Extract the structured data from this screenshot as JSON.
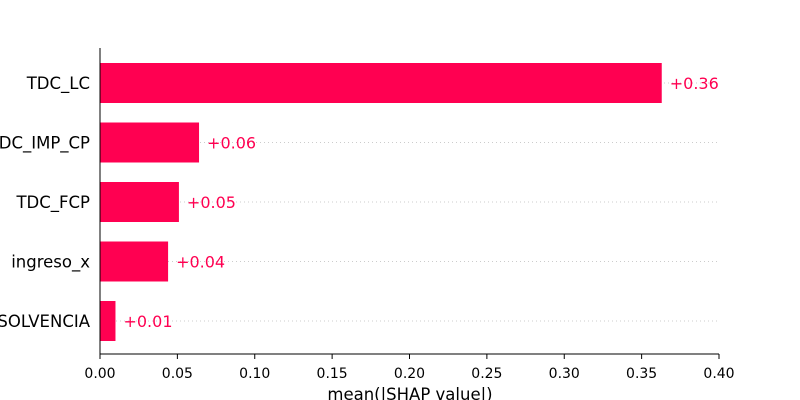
{
  "chart_data": {
    "type": "bar",
    "orientation": "horizontal",
    "categories": [
      "TDC_LC",
      "TDC_IMP_CP",
      "TDC_FCP",
      "ingreso_x",
      "SOLVENCIA"
    ],
    "values": [
      0.363,
      0.064,
      0.051,
      0.044,
      0.01
    ],
    "value_labels": [
      "+0.36",
      "+0.06",
      "+0.05",
      "+0.04",
      "+0.01"
    ],
    "xlabel": "mean(|SHAP value|)",
    "ylabel": "",
    "title": "",
    "xlim": [
      0.0,
      0.4
    ],
    "x_ticks": [
      "0.00",
      "0.05",
      "0.10",
      "0.15",
      "0.20",
      "0.25",
      "0.30",
      "0.35",
      "0.40"
    ],
    "grid": "dotted horizontal lines per bar",
    "bar_color": "#ff0051",
    "label_color": "#ff0051"
  }
}
